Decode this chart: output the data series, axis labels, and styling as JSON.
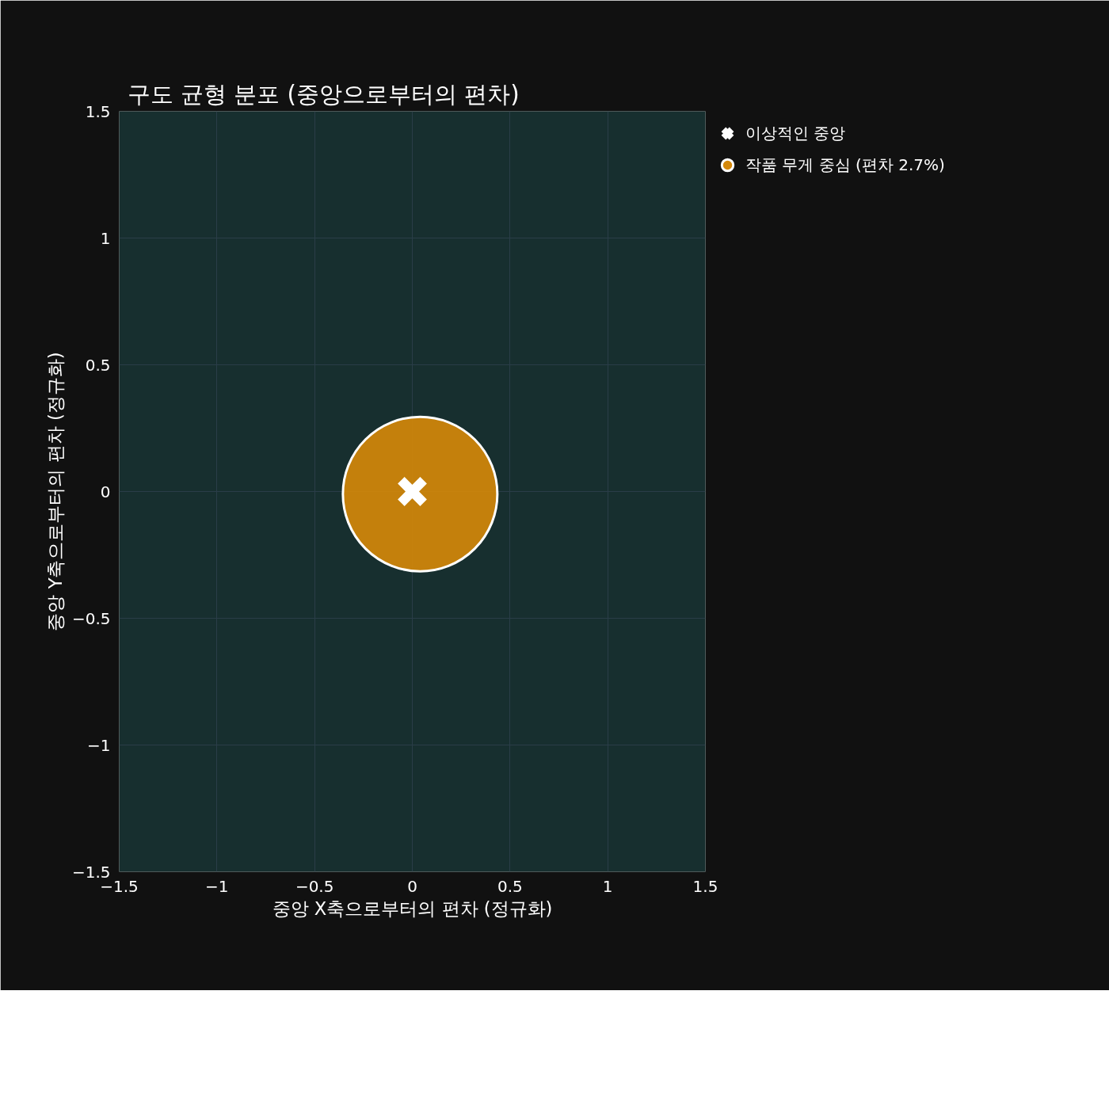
{
  "chart_data": {
    "type": "scatter",
    "title": "구도 균형 분포 (중앙으로부터의 편차)",
    "xlabel": "중앙 X축으로부터의 편차 (정규화)",
    "ylabel": "중앙 Y축으로부터의 편차 (정규화)",
    "xlim": [
      -1.5,
      1.5
    ],
    "ylim": [
      -1.5,
      1.5
    ],
    "xticks": [
      {
        "value": -1.5,
        "label": "−1.5"
      },
      {
        "value": -1,
        "label": "−1"
      },
      {
        "value": -0.5,
        "label": "−0.5"
      },
      0,
      0.5,
      1,
      1.5
    ],
    "yticks": [
      {
        "value": -1.5,
        "label": "−1.5"
      },
      {
        "value": -1,
        "label": "−1"
      },
      {
        "value": -0.5,
        "label": "−0.5"
      },
      0,
      0.5,
      1,
      1.5
    ],
    "grid": true,
    "legend": "top right",
    "series": [
      {
        "name": "이상적인 중앙",
        "color": "#ffffff",
        "marker": "cross",
        "x": [
          0
        ],
        "values": [
          0
        ]
      },
      {
        "name": "작품 무게 중심 (편차 2.7%)",
        "color": "#d4880a",
        "marker": "circle",
        "x": [
          0.04
        ],
        "values": [
          -0.01
        ]
      }
    ]
  }
}
